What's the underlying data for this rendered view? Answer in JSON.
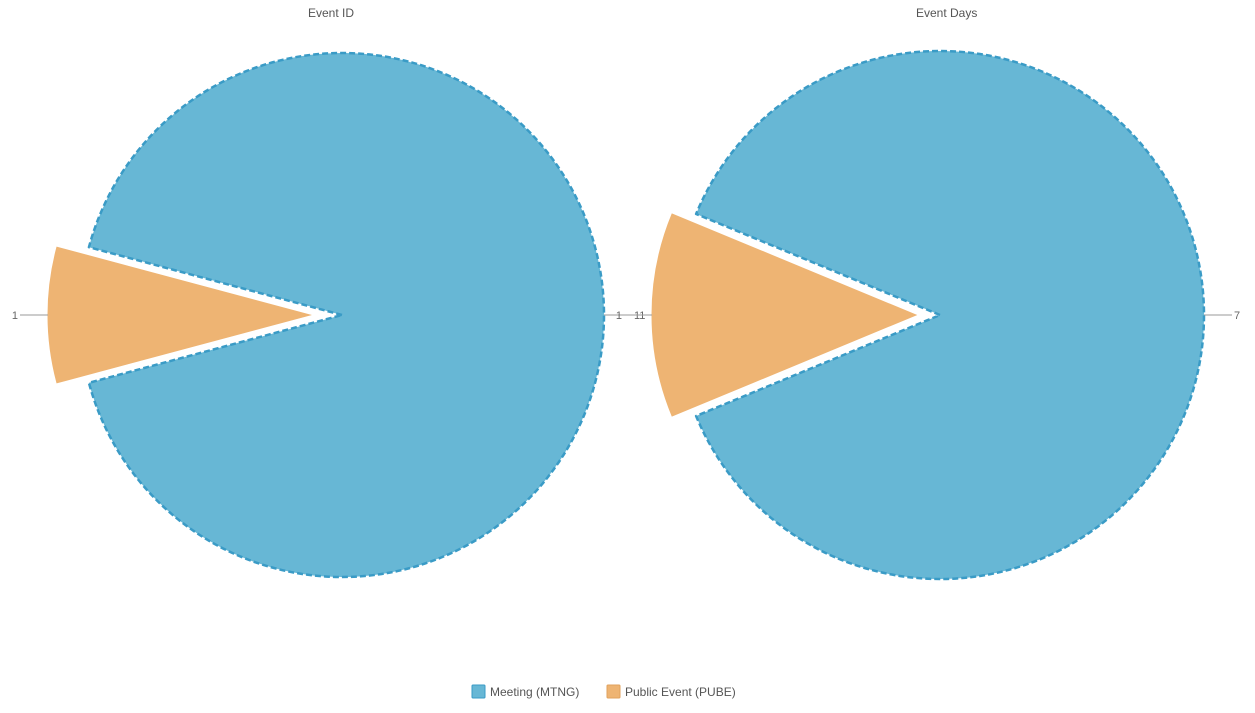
{
  "chart_data": [
    {
      "type": "pie",
      "title": "Event ID",
      "categories": [
        "Meeting (MTNG)",
        "Public Event (PUBE)"
      ],
      "values": [
        11,
        1
      ],
      "labels": [
        "11",
        "1"
      ],
      "colors": [
        "#67b7d5",
        "#eeb473"
      ],
      "border_colors": [
        "#3a9bc6",
        "#eeb473"
      ]
    },
    {
      "type": "pie",
      "title": "Event Days",
      "categories": [
        "Meeting (MTNG)",
        "Public Event (PUBE)"
      ],
      "values": [
        7,
        1
      ],
      "labels": [
        "7",
        "1"
      ],
      "colors": [
        "#67b7d5",
        "#eeb473"
      ],
      "border_colors": [
        "#3a9bc6",
        "#eeb473"
      ]
    }
  ],
  "legend": {
    "placement": "bottom-center",
    "items": [
      {
        "label": "Meeting (MTNG)",
        "color": "#67b7d5"
      },
      {
        "label": "Public Event (PUBE)",
        "color": "#eeb473"
      }
    ]
  }
}
